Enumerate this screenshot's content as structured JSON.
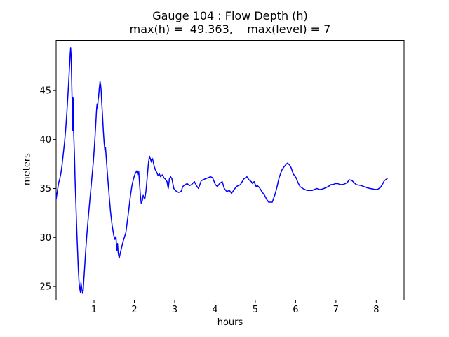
{
  "figure": {
    "background": "#ffffff",
    "title_line1": "Gauge 104 : Flow Depth (h)",
    "title_line2": "max(h) =  49.363,    max(level) = 7"
  },
  "chart_data": {
    "type": "line",
    "title": "Gauge 104 : Flow Depth (h)",
    "subtitle": "max(h) =  49.363,    max(level) = 7",
    "gauge_id": "104",
    "max_h": 49.363,
    "max_level": 7,
    "xlabel": "hours",
    "ylabel": "meters",
    "xlim": [
      0.06,
      8.69
    ],
    "ylim": [
      23.61,
      50.11
    ],
    "x_ticks": [
      1,
      2,
      3,
      4,
      5,
      6,
      7,
      8
    ],
    "y_ticks": [
      25,
      30,
      35,
      40,
      45
    ],
    "grid": false,
    "legend": "none",
    "line_color": "#0000ff",
    "axis_color": "#000000",
    "series": [
      {
        "name": "h",
        "points": [
          [
            0.06,
            33.9
          ],
          [
            0.09,
            34.7
          ],
          [
            0.12,
            35.5
          ],
          [
            0.15,
            36.0
          ],
          [
            0.18,
            36.6
          ],
          [
            0.21,
            37.5
          ],
          [
            0.24,
            38.6
          ],
          [
            0.27,
            39.8
          ],
          [
            0.3,
            41.2
          ],
          [
            0.33,
            43.0
          ],
          [
            0.36,
            45.0
          ],
          [
            0.39,
            47.3
          ],
          [
            0.41,
            48.8
          ],
          [
            0.42,
            49.363
          ],
          [
            0.432,
            48.5
          ],
          [
            0.445,
            46.2
          ],
          [
            0.455,
            44.2
          ],
          [
            0.465,
            42.3
          ],
          [
            0.472,
            40.9
          ],
          [
            0.478,
            44.3
          ],
          [
            0.484,
            44.0
          ],
          [
            0.49,
            41.4
          ],
          [
            0.5,
            40.1
          ],
          [
            0.515,
            38.3
          ],
          [
            0.53,
            35.9
          ],
          [
            0.55,
            33.4
          ],
          [
            0.57,
            31.0
          ],
          [
            0.59,
            28.8
          ],
          [
            0.61,
            26.8
          ],
          [
            0.63,
            25.3
          ],
          [
            0.65,
            24.7
          ],
          [
            0.663,
            24.4
          ],
          [
            0.676,
            25.4
          ],
          [
            0.69,
            25.0
          ],
          [
            0.705,
            24.6
          ],
          [
            0.717,
            24.3
          ],
          [
            0.732,
            24.6
          ],
          [
            0.748,
            25.7
          ],
          [
            0.768,
            27.0
          ],
          [
            0.79,
            28.5
          ],
          [
            0.82,
            30.2
          ],
          [
            0.86,
            32.2
          ],
          [
            0.9,
            34.0
          ],
          [
            0.94,
            35.8
          ],
          [
            0.98,
            37.6
          ],
          [
            1.01,
            39.3
          ],
          [
            1.04,
            41.3
          ],
          [
            1.06,
            42.9
          ],
          [
            1.075,
            43.6
          ],
          [
            1.087,
            43.2
          ],
          [
            1.1,
            44.0
          ],
          [
            1.115,
            44.4
          ],
          [
            1.13,
            45.2
          ],
          [
            1.15,
            45.9
          ],
          [
            1.163,
            45.6
          ],
          [
            1.178,
            44.9
          ],
          [
            1.19,
            43.9
          ],
          [
            1.21,
            42.5
          ],
          [
            1.23,
            41.0
          ],
          [
            1.25,
            39.7
          ],
          [
            1.27,
            38.9
          ],
          [
            1.285,
            39.2
          ],
          [
            1.3,
            38.3
          ],
          [
            1.32,
            37.2
          ],
          [
            1.35,
            35.6
          ],
          [
            1.38,
            34.0
          ],
          [
            1.41,
            32.6
          ],
          [
            1.45,
            31.2
          ],
          [
            1.49,
            30.2
          ],
          [
            1.52,
            29.8
          ],
          [
            1.545,
            30.1
          ],
          [
            1.565,
            28.7
          ],
          [
            1.582,
            29.4
          ],
          [
            1.6,
            28.4
          ],
          [
            1.625,
            27.9
          ],
          [
            1.65,
            28.4
          ],
          [
            1.68,
            28.9
          ],
          [
            1.72,
            29.6
          ],
          [
            1.76,
            30.1
          ],
          [
            1.79,
            30.5
          ],
          [
            1.82,
            31.5
          ],
          [
            1.86,
            32.8
          ],
          [
            1.9,
            34.2
          ],
          [
            1.94,
            35.3
          ],
          [
            1.98,
            36.0
          ],
          [
            2.02,
            36.5
          ],
          [
            2.06,
            36.8
          ],
          [
            2.085,
            36.4
          ],
          [
            2.11,
            36.7
          ],
          [
            2.13,
            35.4
          ],
          [
            2.15,
            34.3
          ],
          [
            2.17,
            33.5
          ],
          [
            2.2,
            33.8
          ],
          [
            2.22,
            34.3
          ],
          [
            2.24,
            34.1
          ],
          [
            2.26,
            33.9
          ],
          [
            2.29,
            34.8
          ],
          [
            2.32,
            36.2
          ],
          [
            2.35,
            37.6
          ],
          [
            2.375,
            38.3
          ],
          [
            2.4,
            38.0
          ],
          [
            2.42,
            37.7
          ],
          [
            2.44,
            38.1
          ],
          [
            2.46,
            37.9
          ],
          [
            2.49,
            37.3
          ],
          [
            2.52,
            36.9
          ],
          [
            2.56,
            36.6
          ],
          [
            2.59,
            36.3
          ],
          [
            2.62,
            36.5
          ],
          [
            2.65,
            36.2
          ],
          [
            2.7,
            36.4
          ],
          [
            2.73,
            36.1
          ],
          [
            2.76,
            36.0
          ],
          [
            2.81,
            35.7
          ],
          [
            2.84,
            35.0
          ],
          [
            2.87,
            36.0
          ],
          [
            2.9,
            36.2
          ],
          [
            2.93,
            36.0
          ],
          [
            2.98,
            35.0
          ],
          [
            3.02,
            34.8
          ],
          [
            3.05,
            34.7
          ],
          [
            3.1,
            34.6
          ],
          [
            3.16,
            34.7
          ],
          [
            3.2,
            35.2
          ],
          [
            3.23,
            35.3
          ],
          [
            3.26,
            35.4
          ],
          [
            3.31,
            35.5
          ],
          [
            3.37,
            35.3
          ],
          [
            3.42,
            35.4
          ],
          [
            3.49,
            35.7
          ],
          [
            3.54,
            35.3
          ],
          [
            3.59,
            35.0
          ],
          [
            3.66,
            35.8
          ],
          [
            3.71,
            35.9
          ],
          [
            3.77,
            36.0
          ],
          [
            3.83,
            36.1
          ],
          [
            3.89,
            36.2
          ],
          [
            3.94,
            36.1
          ],
          [
            4.01,
            35.4
          ],
          [
            4.06,
            35.2
          ],
          [
            4.11,
            35.5
          ],
          [
            4.18,
            35.7
          ],
          [
            4.23,
            35.0
          ],
          [
            4.29,
            34.7
          ],
          [
            4.36,
            34.8
          ],
          [
            4.41,
            34.5
          ],
          [
            4.46,
            34.8
          ],
          [
            4.53,
            35.2
          ],
          [
            4.63,
            35.4
          ],
          [
            4.72,
            36.0
          ],
          [
            4.79,
            36.2
          ],
          [
            4.84,
            35.9
          ],
          [
            4.9,
            35.7
          ],
          [
            4.93,
            35.5
          ],
          [
            4.97,
            35.7
          ],
          [
            5.02,
            35.2
          ],
          [
            5.05,
            35.3
          ],
          [
            5.1,
            35.1
          ],
          [
            5.16,
            34.7
          ],
          [
            5.23,
            34.3
          ],
          [
            5.28,
            33.9
          ],
          [
            5.33,
            33.6
          ],
          [
            5.38,
            33.6
          ],
          [
            5.42,
            33.6
          ],
          [
            5.49,
            34.4
          ],
          [
            5.54,
            35.2
          ],
          [
            5.59,
            36.1
          ],
          [
            5.66,
            36.9
          ],
          [
            5.71,
            37.2
          ],
          [
            5.77,
            37.5
          ],
          [
            5.8,
            37.6
          ],
          [
            5.85,
            37.4
          ],
          [
            5.89,
            37.1
          ],
          [
            5.94,
            36.5
          ],
          [
            6.01,
            36.1
          ],
          [
            6.06,
            35.6
          ],
          [
            6.11,
            35.2
          ],
          [
            6.18,
            35.0
          ],
          [
            6.23,
            34.9
          ],
          [
            6.29,
            34.8
          ],
          [
            6.36,
            34.8
          ],
          [
            6.41,
            34.8
          ],
          [
            6.46,
            34.9
          ],
          [
            6.53,
            35.0
          ],
          [
            6.58,
            34.9
          ],
          [
            6.63,
            34.9
          ],
          [
            6.7,
            35.0
          ],
          [
            6.76,
            35.1
          ],
          [
            6.81,
            35.2
          ],
          [
            6.88,
            35.4
          ],
          [
            6.93,
            35.4
          ],
          [
            6.98,
            35.5
          ],
          [
            7.05,
            35.5
          ],
          [
            7.1,
            35.4
          ],
          [
            7.17,
            35.4
          ],
          [
            7.23,
            35.5
          ],
          [
            7.28,
            35.6
          ],
          [
            7.33,
            35.9
          ],
          [
            7.4,
            35.8
          ],
          [
            7.5,
            35.4
          ],
          [
            7.63,
            35.3
          ],
          [
            7.75,
            35.1
          ],
          [
            7.85,
            35.0
          ],
          [
            7.97,
            34.9
          ],
          [
            8.03,
            34.9
          ],
          [
            8.1,
            35.1
          ],
          [
            8.15,
            35.4
          ],
          [
            8.2,
            35.8
          ],
          [
            8.27,
            36.0
          ]
        ]
      }
    ]
  }
}
